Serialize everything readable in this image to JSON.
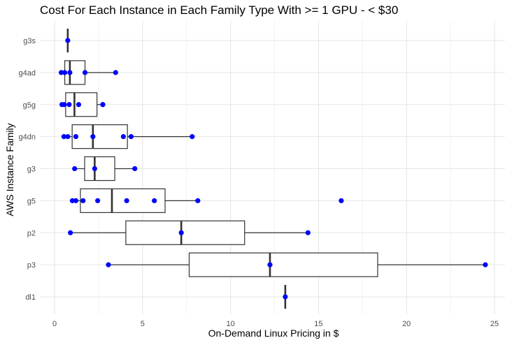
{
  "chart_data": {
    "type": "boxplot",
    "title": "Cost For Each Instance in Each Family Type With >= 1 GPU - < $30",
    "xlabel": "On-Demand Linux Pricing in $",
    "ylabel": "AWS Instance Family",
    "xlim": [
      0,
      25
    ],
    "x_ticks": [
      0,
      5,
      10,
      15,
      20,
      25
    ],
    "x_tick_labels": [
      "0",
      "5",
      "10",
      "15",
      "20",
      "25"
    ],
    "grid": true,
    "point_color": "#0000ff",
    "categories": [
      "g3s",
      "g4ad",
      "g5g",
      "g4dn",
      "g3",
      "g5",
      "p2",
      "p3",
      "dl1"
    ],
    "boxes": [
      {
        "family": "g3s",
        "whisker_low": 0.75,
        "q1": 0.75,
        "median": 0.75,
        "q3": 0.75,
        "whisker_high": 0.75,
        "points": [
          0.75
        ]
      },
      {
        "family": "g4ad",
        "whisker_low": 0.38,
        "q1": 0.58,
        "median": 0.87,
        "q3": 1.73,
        "whisker_high": 3.47,
        "points": [
          0.38,
          0.58,
          0.87,
          1.73,
          3.47
        ]
      },
      {
        "family": "g5g",
        "whisker_low": 0.42,
        "q1": 0.63,
        "median": 1.13,
        "q3": 2.41,
        "whisker_high": 2.74,
        "points": [
          0.42,
          0.55,
          0.83,
          1.37,
          2.74,
          2.74
        ]
      },
      {
        "family": "g4dn",
        "whisker_low": 0.53,
        "q1": 1.0,
        "median": 2.18,
        "q3": 4.14,
        "whisker_high": 7.82,
        "points": [
          0.53,
          0.75,
          1.21,
          2.18,
          3.91,
          4.35,
          7.82
        ]
      },
      {
        "family": "g3",
        "whisker_low": 1.14,
        "q1": 1.71,
        "median": 2.28,
        "q3": 3.42,
        "whisker_high": 4.56,
        "points": [
          1.14,
          2.28,
          4.56
        ]
      },
      {
        "family": "g5",
        "whisker_low": 1.01,
        "q1": 1.47,
        "median": 3.26,
        "q3": 6.28,
        "whisker_high": 8.14,
        "points": [
          1.01,
          1.21,
          1.62,
          2.45,
          4.1,
          5.67,
          8.14,
          16.29
        ]
      },
      {
        "family": "p2",
        "whisker_low": 0.9,
        "q1": 4.05,
        "median": 7.2,
        "q3": 10.8,
        "whisker_high": 14.4,
        "points": [
          0.9,
          7.2,
          14.4
        ]
      },
      {
        "family": "p3",
        "whisker_low": 3.06,
        "q1": 7.65,
        "median": 12.24,
        "q3": 18.36,
        "whisker_high": 24.48,
        "points": [
          3.06,
          12.24,
          24.48
        ]
      },
      {
        "family": "dl1",
        "whisker_low": 13.11,
        "q1": 13.11,
        "median": 13.11,
        "q3": 13.11,
        "whisker_high": 13.11,
        "points": [
          13.11
        ]
      }
    ]
  }
}
